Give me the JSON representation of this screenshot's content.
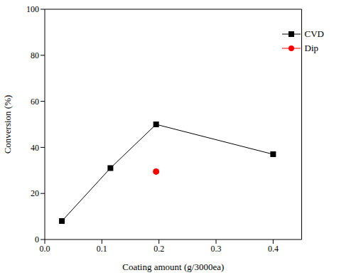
{
  "chart_data": {
    "type": "scatter",
    "xlabel": "Coating amount (g/3000ea)",
    "ylabel": "Conversion (%)",
    "xlim": [
      0,
      0.45
    ],
    "xticks": [
      {
        "value": 0,
        "label": "0.0"
      },
      0.1,
      0.2,
      0.3,
      0.4
    ],
    "ylim": [
      0,
      100
    ],
    "yticks": [
      0,
      20,
      40,
      60,
      80,
      100
    ],
    "grid": false,
    "legend": "upper right",
    "series": [
      {
        "name": "CVD",
        "color": "#000000",
        "marker": "square",
        "line_style": "solid",
        "x": [
          0.03,
          0.115,
          0.195,
          0.4
        ],
        "values": [
          8,
          31,
          50,
          37
        ]
      },
      {
        "name": "Dip",
        "color": "#ff0000",
        "marker": "circle",
        "x": [
          0.195
        ],
        "values": [
          29.5
        ]
      }
    ]
  }
}
